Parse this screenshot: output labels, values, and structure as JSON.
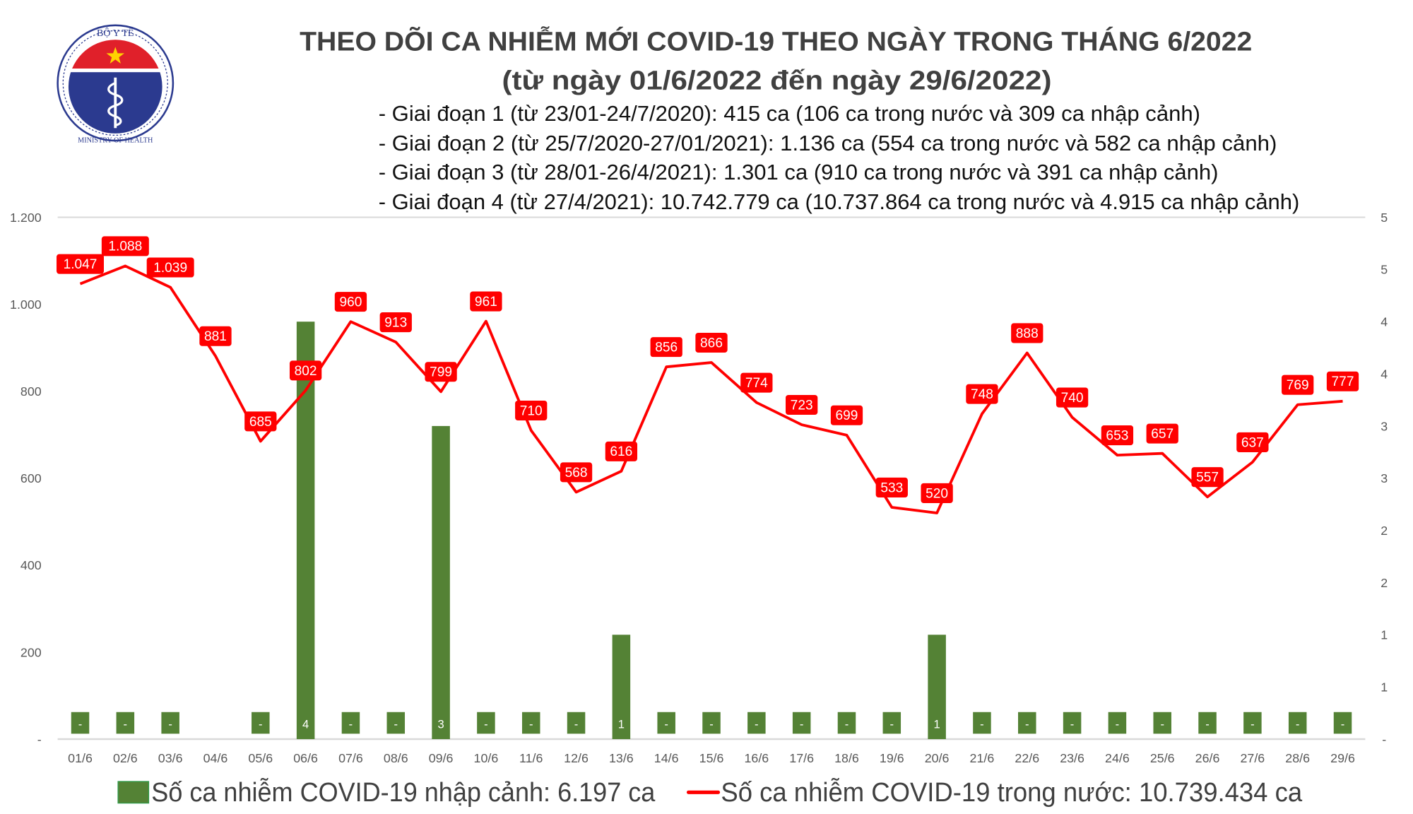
{
  "logo": {
    "top_text": "BỘ Y TẾ",
    "bottom_text": "MINISTRY OF HEALTH",
    "colors": {
      "red": "#e0202a",
      "blue": "#2b3a8f"
    }
  },
  "title": "THEO DÕI CA NHIỄM MỚI COVID-19 THEO NGÀY TRONG THÁNG 6/2022",
  "subtitle": "(từ ngày 01/6/2022 đến ngày 29/6/2022)",
  "notes": [
    "- Giai đoạn 1 (từ 23/01-24/7/2020): 415 ca (106 ca trong nước và 309 ca nhập cảnh)",
    "- Giai đoạn 2 (từ 25/7/2020-27/01/2021): 1.136 ca (554 ca trong nước và 582 ca nhập cảnh)",
    "- Giai đoạn 3 (từ 28/01-26/4/2021): 1.301 ca (910 ca trong nước và 391 ca nhập cảnh)",
    "- Giai đoạn 4 (từ 27/4/2021): 10.742.779 ca (10.737.864 ca trong nước và 4.915 ca nhập cảnh)"
  ],
  "chart_data": {
    "type": "bar+line",
    "categories": [
      "01/6",
      "02/6",
      "03/6",
      "04/6",
      "05/6",
      "06/6",
      "07/6",
      "08/6",
      "09/6",
      "10/6",
      "11/6",
      "12/6",
      "13/6",
      "14/6",
      "15/6",
      "16/6",
      "17/6",
      "18/6",
      "19/6",
      "20/6",
      "21/6",
      "22/6",
      "23/6",
      "24/6",
      "25/6",
      "26/6",
      "27/6",
      "28/6",
      "29/6"
    ],
    "series": [
      {
        "name": "Số ca nhiễm COVID-19 nhập cảnh: 6.197 ca",
        "type": "bar",
        "axis": "right",
        "color": "#548235",
        "values": [
          0,
          0,
          0,
          null,
          0,
          4,
          0,
          0,
          3,
          0,
          0,
          0,
          1,
          0,
          0,
          0,
          0,
          0,
          0,
          1,
          0,
          0,
          0,
          0,
          0,
          0,
          0,
          0,
          0
        ],
        "labels": [
          "-",
          "-",
          "-",
          "",
          "-",
          "4",
          "-",
          "-",
          "3",
          "-",
          "-",
          "-",
          "1",
          "-",
          "-",
          "-",
          "-",
          "-",
          "-",
          "1",
          "-",
          "-",
          "-",
          "-",
          "-",
          "-",
          "-",
          "-",
          "-"
        ]
      },
      {
        "name": "Số ca nhiễm COVID-19 trong nước: 10.739.434 ca",
        "type": "line",
        "axis": "left",
        "color": "#ff0000",
        "values": [
          1047,
          1088,
          1039,
          881,
          685,
          802,
          960,
          913,
          799,
          961,
          710,
          568,
          616,
          856,
          866,
          774,
          723,
          699,
          533,
          520,
          748,
          888,
          740,
          653,
          657,
          557,
          637,
          769,
          777
        ],
        "labels": [
          "1.047",
          "1.088",
          "1.039",
          "881",
          "685",
          "802",
          "960",
          "913",
          "799",
          "961",
          "710",
          "568",
          "616",
          "856",
          "866",
          "774",
          "723",
          "699",
          "533",
          "520",
          "748",
          "888",
          "740",
          "653",
          "657",
          "557",
          "637",
          "769",
          "777"
        ]
      }
    ],
    "y_left": {
      "ylim": [
        0,
        1200
      ],
      "ticks": [
        "-",
        "200",
        "400",
        "600",
        "800",
        "1.000",
        "1.200"
      ]
    },
    "y_right": {
      "ylim": [
        0,
        5
      ],
      "ticks": [
        "-",
        "1",
        "1",
        "2",
        "2",
        "3",
        "3",
        "4",
        "4",
        "5",
        "5"
      ]
    },
    "grid": false,
    "legend_placement": "bottom",
    "label_box_color": "#ff0000"
  }
}
